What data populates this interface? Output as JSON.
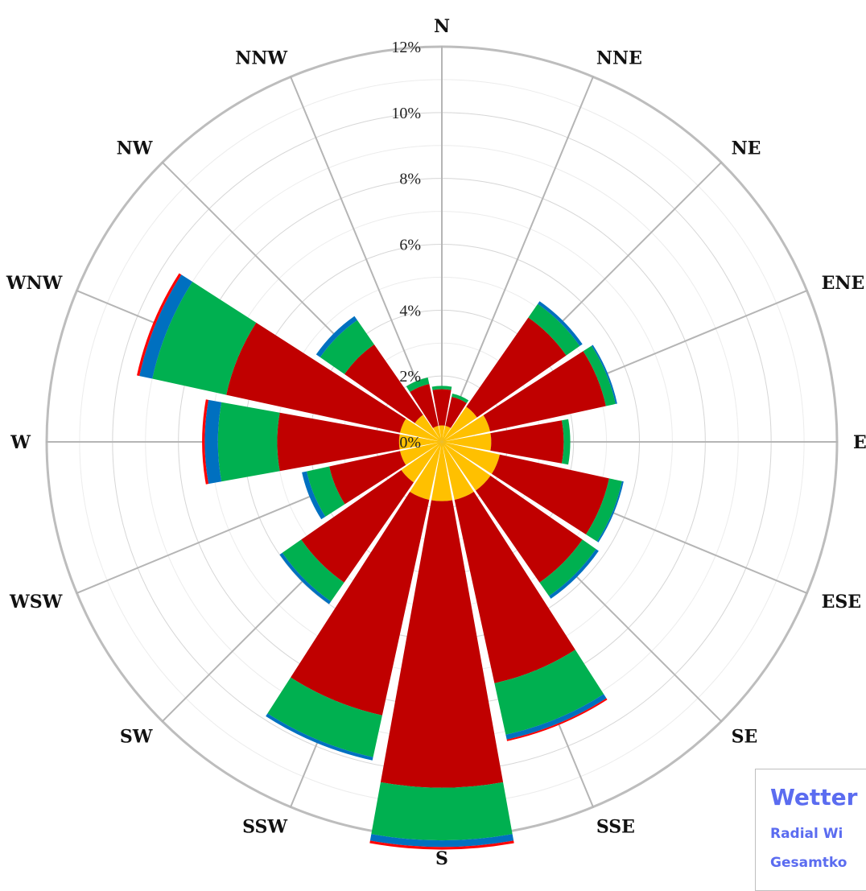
{
  "chart_data": {
    "type": "wind-rose (stacked polar bar)",
    "directions": [
      "N",
      "NNE",
      "NE",
      "ENE",
      "E",
      "ESE",
      "SE",
      "SSE",
      "S",
      "SSW",
      "SW",
      "WSW",
      "W",
      "WNW",
      "NW",
      "NNW"
    ],
    "radial_ticks": [
      "0%",
      "2%",
      "4%",
      "6%",
      "8%",
      "10%",
      "12%"
    ],
    "rmax": 12,
    "series": [
      {
        "color": "#FFC000",
        "values": [
          0.5,
          0.5,
          1.3,
          1.5,
          1.5,
          1.8,
          1.8,
          1.8,
          1.8,
          1.8,
          1.5,
          1.3,
          1.3,
          1.3,
          1.0,
          0.5
        ]
      },
      {
        "color": "#C00000",
        "values": [
          1.1,
          0.9,
          3.3,
          3.6,
          2.2,
          3.4,
          3.4,
          5.7,
          8.7,
          6.7,
          3.7,
          2.2,
          3.7,
          5.4,
          2.6,
          1.3
        ]
      },
      {
        "color": "#00B050",
        "values": [
          0.1,
          0.1,
          0.5,
          0.3,
          0.2,
          0.4,
          0.5,
          1.6,
          1.6,
          1.3,
          0.7,
          0.7,
          1.8,
          2.3,
          0.9,
          0.2
        ]
      },
      {
        "color": "#0070C0",
        "values": [
          0.0,
          0.0,
          0.1,
          0.05,
          0.0,
          0.05,
          0.1,
          0.15,
          0.2,
          0.1,
          0.1,
          0.15,
          0.4,
          0.4,
          0.15,
          0.0
        ]
      },
      {
        "color": "#FF0000",
        "values": [
          0.0,
          0.0,
          0.0,
          0.0,
          0.0,
          0.0,
          0.0,
          0.05,
          0.08,
          0.0,
          0.0,
          0.0,
          0.08,
          0.08,
          0.0,
          0.0
        ]
      }
    ]
  },
  "info_box": {
    "title": "Wetter",
    "line1": "Radial Wi",
    "line2": "Gesamtko"
  }
}
